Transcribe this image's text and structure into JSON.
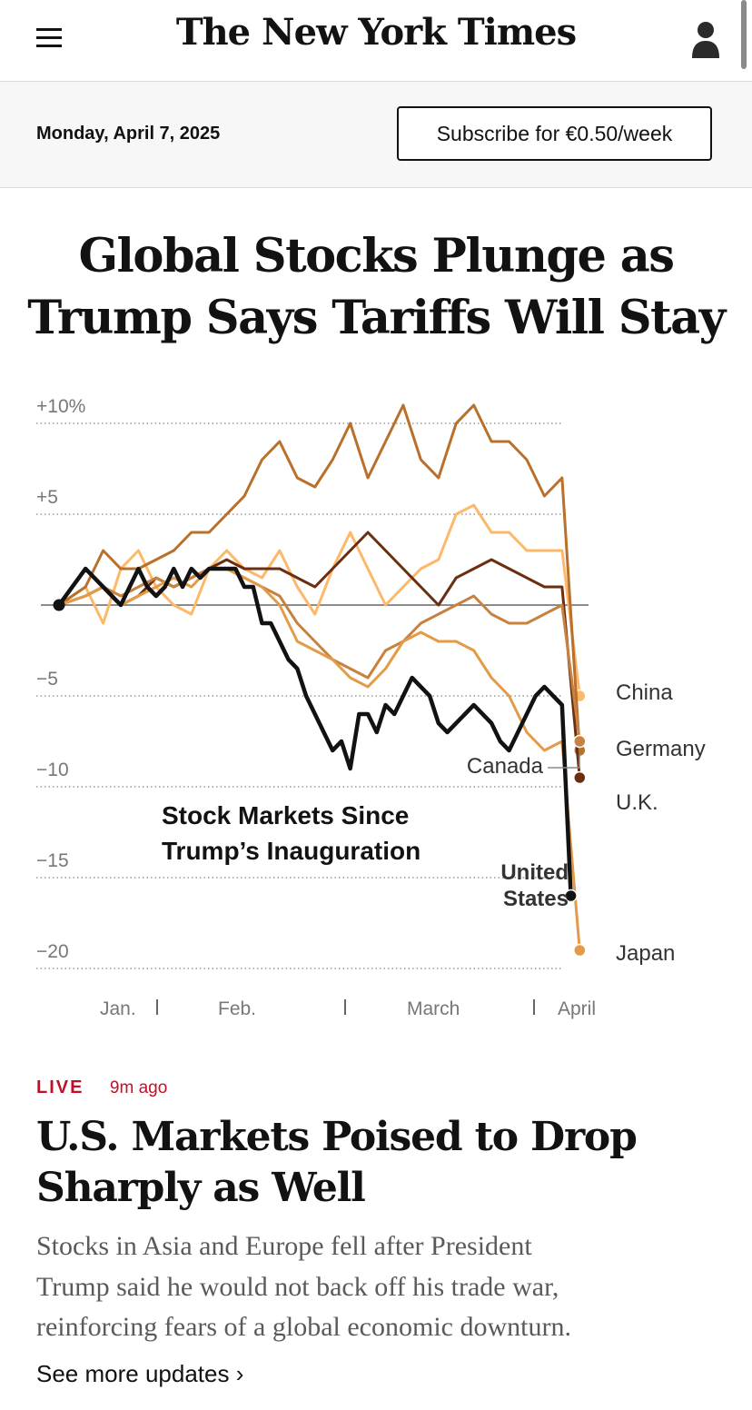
{
  "header": {
    "logo": "The New York Times",
    "menu_icon": "hamburger-menu-icon",
    "account_icon": "person-account-icon"
  },
  "subbar": {
    "date": "Monday, April 7, 2025",
    "subscribe_label": "Subscribe for €0.50/week"
  },
  "headline": {
    "line1": "Global Stocks Plunge as",
    "line2": "Trump Says Tariffs Will Stay"
  },
  "chart_data": {
    "type": "line",
    "title_line1": "Stock Markets Since",
    "title_line2": "Trump’s Inauguration",
    "y_ticks": [
      {
        "value": 10,
        "label": "+10%"
      },
      {
        "value": 5,
        "label": "+5"
      },
      {
        "value": 0,
        "label": "–"
      },
      {
        "value": -5,
        "label": "−5"
      },
      {
        "value": -10,
        "label": "−10"
      },
      {
        "value": -15,
        "label": "−15"
      },
      {
        "value": -20,
        "label": "−20"
      }
    ],
    "x_labels": [
      "Jan.",
      "Feb.",
      "March",
      "April"
    ],
    "ylim": [
      -21,
      12
    ],
    "xlim": [
      0,
      60
    ],
    "series": [
      {
        "name": "China",
        "color": "#fdb86a",
        "label_lines": [
          "China"
        ],
        "points": [
          [
            0,
            0
          ],
          [
            3,
            1
          ],
          [
            5,
            -1
          ],
          [
            7,
            2
          ],
          [
            9,
            3
          ],
          [
            11,
            1
          ],
          [
            13,
            0
          ],
          [
            15,
            -0.5
          ],
          [
            17,
            2
          ],
          [
            19,
            3
          ],
          [
            21,
            2
          ],
          [
            23,
            1.5
          ],
          [
            25,
            3
          ],
          [
            27,
            1
          ],
          [
            29,
            -0.5
          ],
          [
            31,
            2
          ],
          [
            33,
            4
          ],
          [
            35,
            2
          ],
          [
            37,
            0
          ],
          [
            39,
            1
          ],
          [
            41,
            2
          ],
          [
            43,
            2.5
          ],
          [
            45,
            5
          ],
          [
            47,
            5.5
          ],
          [
            49,
            4
          ],
          [
            51,
            4
          ],
          [
            53,
            3
          ],
          [
            55,
            3
          ],
          [
            57,
            3
          ],
          [
            59,
            -5
          ]
        ]
      },
      {
        "name": "Germany",
        "color": "#b8702a",
        "label_lines": [
          "Germany"
        ],
        "points": [
          [
            0,
            0
          ],
          [
            3,
            1
          ],
          [
            5,
            3
          ],
          [
            7,
            2
          ],
          [
            9,
            2
          ],
          [
            11,
            2.5
          ],
          [
            13,
            3
          ],
          [
            15,
            4
          ],
          [
            17,
            4
          ],
          [
            19,
            5
          ],
          [
            21,
            6
          ],
          [
            23,
            8
          ],
          [
            25,
            9
          ],
          [
            27,
            7
          ],
          [
            29,
            6.5
          ],
          [
            31,
            8
          ],
          [
            33,
            10
          ],
          [
            35,
            7
          ],
          [
            37,
            9
          ],
          [
            39,
            11
          ],
          [
            41,
            8
          ],
          [
            43,
            7
          ],
          [
            45,
            10
          ],
          [
            47,
            11
          ],
          [
            49,
            9
          ],
          [
            51,
            9
          ],
          [
            53,
            8
          ],
          [
            55,
            6
          ],
          [
            57,
            7
          ],
          [
            59,
            -8
          ]
        ]
      },
      {
        "name": "U.K.",
        "color": "#6b2e10",
        "label_lines": [
          "U.K."
        ],
        "points": [
          [
            0,
            0
          ],
          [
            3,
            0.5
          ],
          [
            5,
            1
          ],
          [
            7,
            0
          ],
          [
            9,
            0.5
          ],
          [
            11,
            1.5
          ],
          [
            13,
            1
          ],
          [
            15,
            1.5
          ],
          [
            17,
            2
          ],
          [
            19,
            2.5
          ],
          [
            21,
            2
          ],
          [
            23,
            2
          ],
          [
            25,
            2
          ],
          [
            27,
            1.5
          ],
          [
            29,
            1
          ],
          [
            31,
            2
          ],
          [
            33,
            3
          ],
          [
            35,
            4
          ],
          [
            37,
            3
          ],
          [
            39,
            2
          ],
          [
            41,
            1
          ],
          [
            43,
            0
          ],
          [
            45,
            1.5
          ],
          [
            47,
            2
          ],
          [
            49,
            2.5
          ],
          [
            51,
            2
          ],
          [
            53,
            1.5
          ],
          [
            55,
            1
          ],
          [
            57,
            1
          ],
          [
            59,
            -9.5
          ]
        ]
      },
      {
        "name": "Canada",
        "color": "#c8823f",
        "label_lines": [
          "Canada"
        ],
        "points": [
          [
            0,
            0
          ],
          [
            3,
            0.5
          ],
          [
            5,
            1
          ],
          [
            7,
            0.5
          ],
          [
            9,
            1
          ],
          [
            11,
            1.5
          ],
          [
            13,
            1
          ],
          [
            15,
            1.5
          ],
          [
            17,
            2
          ],
          [
            19,
            2
          ],
          [
            21,
            1.5
          ],
          [
            23,
            1
          ],
          [
            25,
            0.5
          ],
          [
            27,
            -1
          ],
          [
            29,
            -2
          ],
          [
            31,
            -3
          ],
          [
            33,
            -3.5
          ],
          [
            35,
            -4
          ],
          [
            37,
            -2.5
          ],
          [
            39,
            -2
          ],
          [
            41,
            -1
          ],
          [
            43,
            -0.5
          ],
          [
            45,
            0
          ],
          [
            47,
            0.5
          ],
          [
            49,
            -0.5
          ],
          [
            51,
            -1
          ],
          [
            53,
            -1
          ],
          [
            55,
            -0.5
          ],
          [
            57,
            0
          ],
          [
            59,
            -7.5
          ]
        ]
      },
      {
        "name": "Japan",
        "color": "#e39b47",
        "label_lines": [
          "Japan"
        ],
        "points": [
          [
            0,
            0
          ],
          [
            3,
            0.5
          ],
          [
            5,
            1
          ],
          [
            7,
            0
          ],
          [
            9,
            0.5
          ],
          [
            11,
            1
          ],
          [
            13,
            1.5
          ],
          [
            15,
            1
          ],
          [
            17,
            2
          ],
          [
            19,
            2
          ],
          [
            21,
            1.5
          ],
          [
            23,
            1
          ],
          [
            25,
            0
          ],
          [
            27,
            -2
          ],
          [
            29,
            -2.5
          ],
          [
            31,
            -3
          ],
          [
            33,
            -4
          ],
          [
            35,
            -4.5
          ],
          [
            37,
            -3.5
          ],
          [
            39,
            -2
          ],
          [
            41,
            -1.5
          ],
          [
            43,
            -2
          ],
          [
            45,
            -2
          ],
          [
            47,
            -2.5
          ],
          [
            49,
            -4
          ],
          [
            51,
            -5
          ],
          [
            53,
            -7
          ],
          [
            55,
            -8
          ],
          [
            57,
            -7.5
          ],
          [
            59,
            -19
          ]
        ]
      },
      {
        "name": "United States",
        "color": "#121212",
        "label_lines": [
          "United",
          "States"
        ],
        "points": [
          [
            0,
            0
          ],
          [
            3,
            2
          ],
          [
            5,
            1
          ],
          [
            7,
            0
          ],
          [
            8,
            1
          ],
          [
            9,
            2
          ],
          [
            10,
            1
          ],
          [
            11,
            0.5
          ],
          [
            12,
            1
          ],
          [
            13,
            2
          ],
          [
            14,
            1
          ],
          [
            15,
            2
          ],
          [
            16,
            1.5
          ],
          [
            17,
            2
          ],
          [
            18,
            2
          ],
          [
            19,
            2
          ],
          [
            20,
            2
          ],
          [
            21,
            1
          ],
          [
            22,
            1
          ],
          [
            23,
            -1
          ],
          [
            24,
            -1
          ],
          [
            25,
            -2
          ],
          [
            26,
            -3
          ],
          [
            27,
            -3.5
          ],
          [
            28,
            -5
          ],
          [
            29,
            -6
          ],
          [
            30,
            -7
          ],
          [
            31,
            -8
          ],
          [
            32,
            -7.5
          ],
          [
            33,
            -9
          ],
          [
            34,
            -6
          ],
          [
            35,
            -6
          ],
          [
            36,
            -7
          ],
          [
            37,
            -5.5
          ],
          [
            38,
            -6
          ],
          [
            39,
            -5
          ],
          [
            40,
            -4
          ],
          [
            41,
            -4.5
          ],
          [
            42,
            -5
          ],
          [
            43,
            -6.5
          ],
          [
            44,
            -7
          ],
          [
            45,
            -6.5
          ],
          [
            46,
            -6
          ],
          [
            47,
            -5.5
          ],
          [
            48,
            -6
          ],
          [
            49,
            -6.5
          ],
          [
            50,
            -7.5
          ],
          [
            51,
            -8
          ],
          [
            52,
            -7
          ],
          [
            53,
            -6
          ],
          [
            54,
            -5
          ],
          [
            55,
            -4.5
          ],
          [
            56,
            -5
          ],
          [
            57,
            -5.5
          ],
          [
            58,
            -16
          ]
        ]
      }
    ]
  },
  "story": {
    "live_label": "LIVE",
    "time_ago": "9m ago",
    "title_line1": "U.S. Markets Poised to Drop",
    "title_line2": "Sharply as Well",
    "summary_line1": "Stocks in Asia and Europe fell after President",
    "summary_line2": "Trump said he would not back off his trade war,",
    "summary_line3": "reinforcing fears of a global economic downturn.",
    "more_label": "See more updates ›"
  }
}
